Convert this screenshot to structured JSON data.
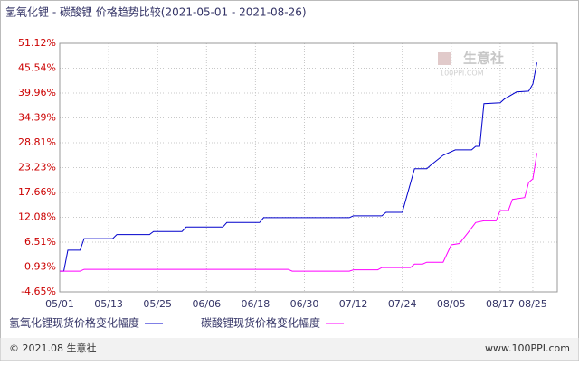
{
  "chart_data": {
    "type": "line",
    "title": "氢氧化锂 - 碳酸锂 价格趋势比较(2021-05-01 - 2021-08-26)",
    "xlim": [
      "05/01",
      "08/31"
    ],
    "xticks": [
      "05/01",
      "05/13",
      "05/25",
      "06/06",
      "06/18",
      "06/30",
      "07/12",
      "07/24",
      "08/05",
      "08/17",
      "08/25"
    ],
    "ylim": [
      -4.65,
      51.12
    ],
    "yticks": [
      {
        "value": 51.12,
        "label": "51.12%"
      },
      {
        "value": 45.54,
        "label": "45.54%"
      },
      {
        "value": 39.96,
        "label": "39.96%"
      },
      {
        "value": 34.39,
        "label": "34.39%"
      },
      {
        "value": 28.81,
        "label": "28.81%"
      },
      {
        "value": 23.23,
        "label": "23.23%"
      },
      {
        "value": 17.66,
        "label": "17.66%"
      },
      {
        "value": 12.08,
        "label": "12.08%"
      },
      {
        "value": 6.51,
        "label": "6.51%"
      },
      {
        "value": 0.93,
        "label": "0.93%"
      },
      {
        "value": -4.65,
        "label": "-4.65%"
      }
    ],
    "grid": true,
    "series": [
      {
        "name": "氢氧化锂现货价格变化幅度",
        "color": "#0000cc",
        "x": [
          "05/01",
          "05/02",
          "05/03",
          "05/06",
          "05/07",
          "05/14",
          "05/15",
          "05/23",
          "05/24",
          "05/31",
          "06/01",
          "06/10",
          "06/11",
          "06/19",
          "06/20",
          "07/11",
          "07/12",
          "07/19",
          "07/20",
          "07/24",
          "07/27",
          "07/30",
          "07/31",
          "08/03",
          "08/06",
          "08/10",
          "08/11",
          "08/12",
          "08/13",
          "08/17",
          "08/18",
          "08/21",
          "08/24",
          "08/25",
          "08/26"
        ],
        "values": [
          0,
          0,
          4.7,
          4.7,
          7.3,
          7.3,
          8.2,
          8.2,
          8.9,
          8.9,
          9.9,
          9.9,
          10.9,
          10.9,
          12.0,
          12.0,
          12.4,
          12.4,
          13.2,
          13.2,
          23.0,
          23.0,
          23.8,
          26.0,
          27.2,
          27.2,
          28.0,
          28.0,
          37.6,
          37.8,
          38.6,
          40.2,
          40.4,
          42.0,
          46.8
        ]
      },
      {
        "name": "碳酸锂现货价格变化幅度",
        "color": "#ff00ff",
        "x": [
          "05/01",
          "05/06",
          "05/07",
          "06/26",
          "06/27",
          "07/11",
          "07/12",
          "07/18",
          "07/19",
          "07/26",
          "07/27",
          "07/29",
          "07/30",
          "08/03",
          "08/05",
          "08/07",
          "08/09",
          "08/11",
          "08/13",
          "08/16",
          "08/17",
          "08/19",
          "08/20",
          "08/23",
          "08/24",
          "08/25",
          "08/26"
        ],
        "values": [
          0,
          0,
          0.4,
          0.4,
          0,
          0,
          0.3,
          0.3,
          0.8,
          0.8,
          1.6,
          1.6,
          2.0,
          2.0,
          5.9,
          6.2,
          8.5,
          10.9,
          11.3,
          11.3,
          13.6,
          13.6,
          16.1,
          16.5,
          19.9,
          20.7,
          26.5
        ]
      }
    ]
  },
  "watermark": {
    "name": "生意社",
    "url": "100PPI.COM"
  },
  "footer": {
    "left": "© 2021.08 生意社",
    "right": "www.100PPI.com"
  }
}
